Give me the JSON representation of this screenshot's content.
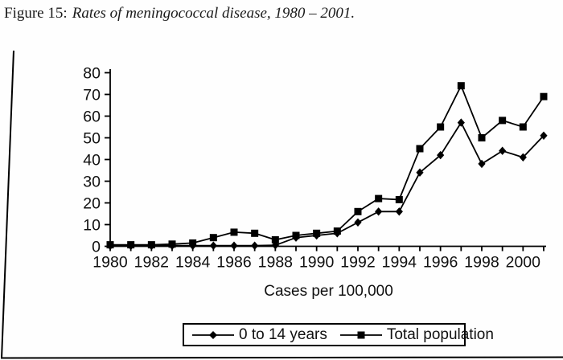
{
  "caption": {
    "prefix": "Figure 15:",
    "title": "Rates of meningococcal disease, 1980 – 2001."
  },
  "chart_data": {
    "type": "line",
    "title": "Rates of meningococcal disease, 1980 – 2001",
    "x": [
      1980,
      1981,
      1982,
      1983,
      1984,
      1985,
      1986,
      1987,
      1988,
      1989,
      1990,
      1991,
      1992,
      1993,
      1994,
      1995,
      1996,
      1997,
      1998,
      1999,
      2000,
      2001
    ],
    "series": [
      {
        "name": "0 to 14 years",
        "marker": "diamond",
        "values": [
          0.2,
          0.2,
          0.2,
          0.3,
          0.3,
          0.3,
          0.3,
          0.3,
          0.5,
          4,
          5,
          6,
          11,
          16,
          16,
          34,
          42,
          57,
          38,
          44,
          41,
          51
        ]
      },
      {
        "name": "Total population",
        "marker": "square",
        "values": [
          0.7,
          0.7,
          0.7,
          1,
          1.5,
          4,
          6.5,
          6,
          3,
          5,
          6,
          7,
          16,
          22,
          21.5,
          45,
          55,
          74,
          50,
          58,
          55,
          69
        ]
      }
    ],
    "xlabel": "Cases per 100,000",
    "ylabel": "",
    "ylim": [
      0,
      80
    ],
    "ytick_step": 10,
    "xtick_every_year": true,
    "xtick_label_step": 2,
    "grid": false,
    "legend_position": "bottom",
    "colors": {
      "line": "#000000",
      "text": "#111111",
      "background": "#ffffff"
    }
  }
}
